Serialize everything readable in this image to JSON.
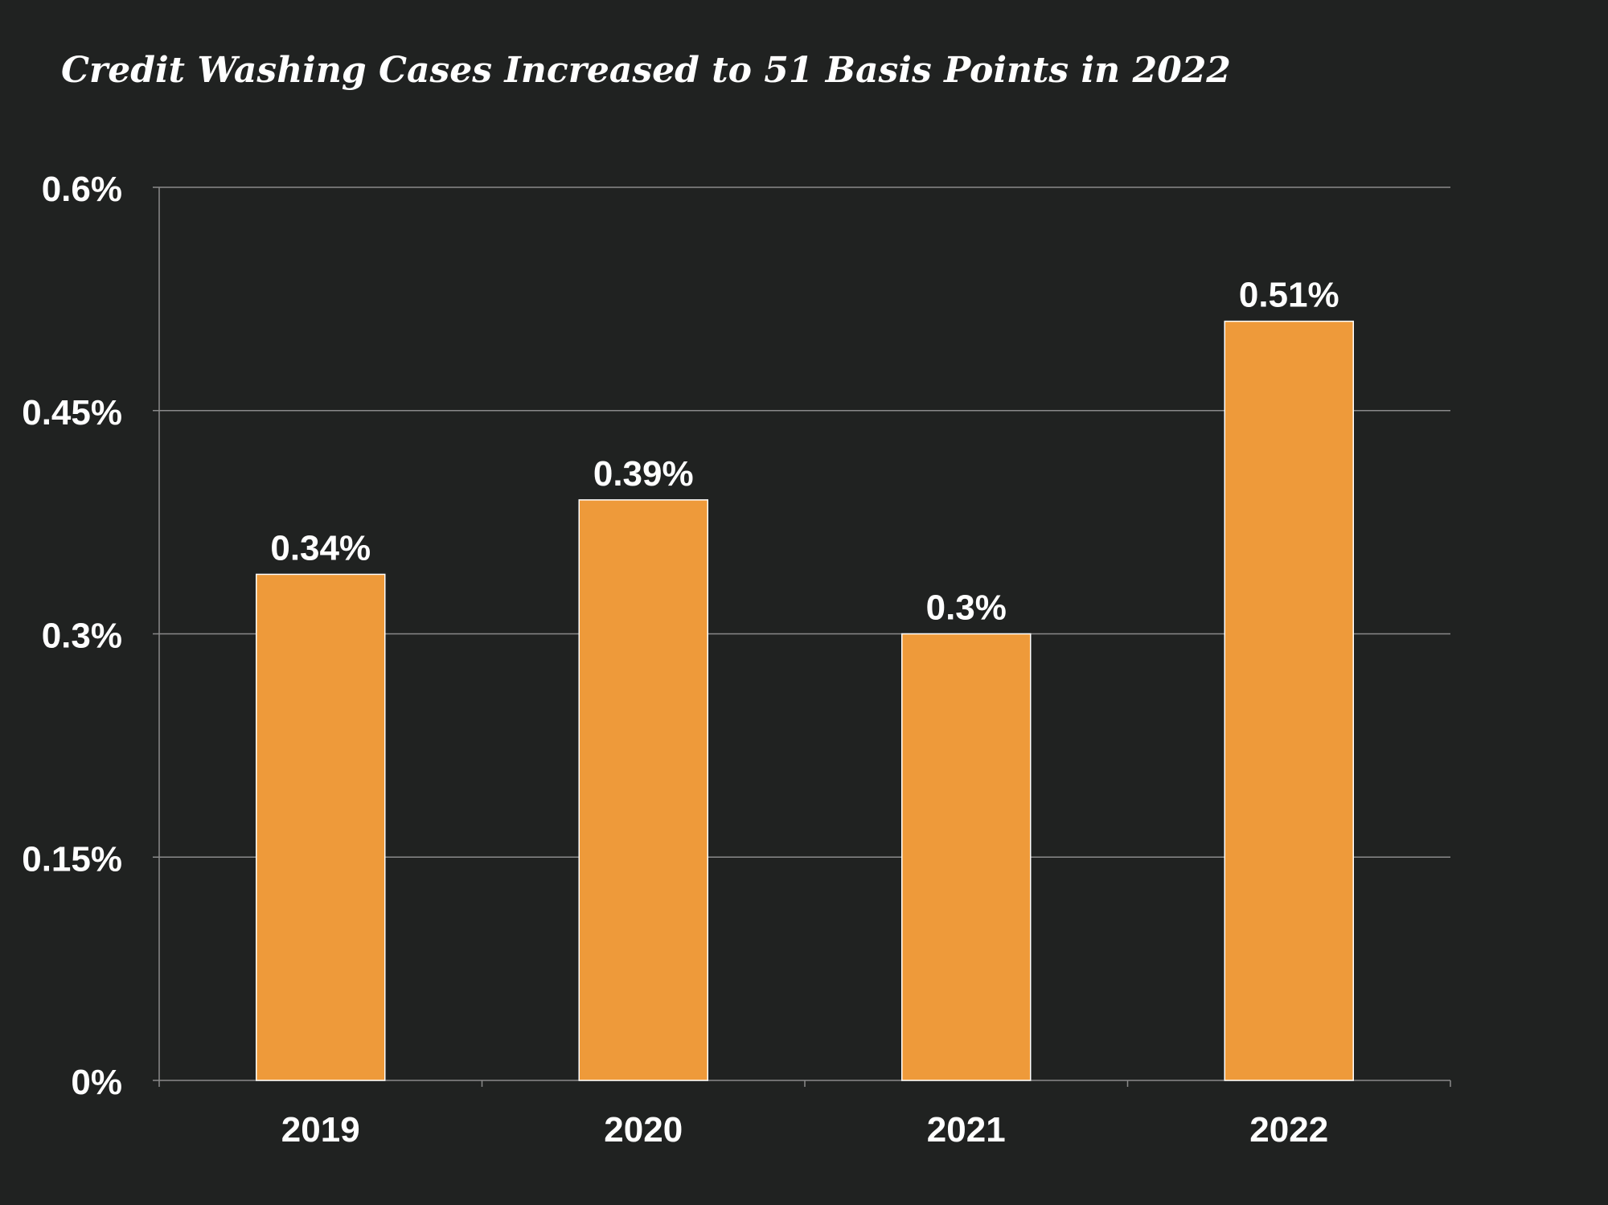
{
  "chart_data": {
    "type": "bar",
    "title": "Credit Washing Cases Increased to 51 Basis Points in 2022",
    "categories": [
      "2019",
      "2020",
      "2021",
      "2022"
    ],
    "values": [
      0.34,
      0.39,
      0.3,
      0.51
    ],
    "value_labels": [
      "0.34%",
      "0.39%",
      "0.3%",
      "0.51%"
    ],
    "xlabel": "",
    "ylabel": "",
    "ylim": [
      0,
      0.6
    ],
    "yticks": [
      0,
      0.15,
      0.3,
      0.45,
      0.6
    ],
    "ytick_labels": [
      "0%",
      "0.15%",
      "0.3%",
      "0.45%",
      "0.6%"
    ],
    "grid": true,
    "legend": "none",
    "colors": {
      "background": "#202221",
      "bar": "#EE9A3A",
      "bar_outline": "#ffffff",
      "grid": "#8a8a8a",
      "text": "#ffffff"
    }
  }
}
